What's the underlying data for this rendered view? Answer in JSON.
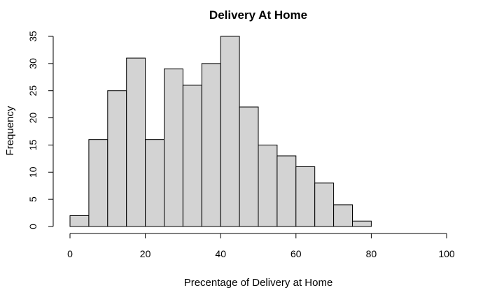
{
  "chart_data": {
    "type": "bar",
    "title": "Delivery At Home",
    "xlabel": "Precentage of Delivery at Home",
    "ylabel": "Frequency",
    "bins": [
      {
        "start": 0,
        "end": 5,
        "count": 2
      },
      {
        "start": 5,
        "end": 10,
        "count": 16
      },
      {
        "start": 10,
        "end": 15,
        "count": 25
      },
      {
        "start": 15,
        "end": 20,
        "count": 31
      },
      {
        "start": 20,
        "end": 25,
        "count": 16
      },
      {
        "start": 25,
        "end": 30,
        "count": 29
      },
      {
        "start": 30,
        "end": 35,
        "count": 26
      },
      {
        "start": 35,
        "end": 40,
        "count": 30
      },
      {
        "start": 40,
        "end": 45,
        "count": 35
      },
      {
        "start": 45,
        "end": 50,
        "count": 22
      },
      {
        "start": 50,
        "end": 55,
        "count": 15
      },
      {
        "start": 55,
        "end": 60,
        "count": 13
      },
      {
        "start": 60,
        "end": 65,
        "count": 11
      },
      {
        "start": 65,
        "end": 70,
        "count": 8
      },
      {
        "start": 70,
        "end": 75,
        "count": 4
      },
      {
        "start": 75,
        "end": 80,
        "count": 1
      }
    ],
    "xlim": [
      0,
      100
    ],
    "ylim": [
      0,
      35
    ],
    "xticks": [
      "0",
      "20",
      "40",
      "60",
      "80",
      "100"
    ],
    "yticks": [
      "0",
      "5",
      "10",
      "15",
      "20",
      "25",
      "30",
      "35"
    ],
    "grid": false,
    "bar_color": "#d3d3d3",
    "edge_color": "#000000"
  }
}
